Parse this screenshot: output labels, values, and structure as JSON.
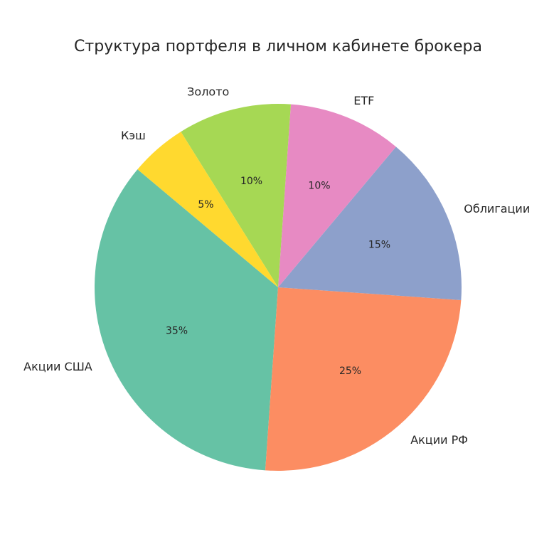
{
  "chart_data": {
    "type": "pie",
    "title": "Структура портфеля в личном кабинете брокера",
    "categories": [
      "Акции США",
      "Акции РФ",
      "Облигации",
      "ETF",
      "Золото",
      "Кэш"
    ],
    "values": [
      35,
      25,
      15,
      10,
      10,
      5
    ],
    "value_labels": [
      "35%",
      "25%",
      "15%",
      "10%",
      "10%",
      "5%"
    ],
    "colors": [
      "#66c2a5",
      "#fc8d62",
      "#8da0cb",
      "#e78ac3",
      "#a6d854",
      "#ffd92f"
    ],
    "start_angle_deg": 140,
    "direction": "counterclockwise",
    "legend": "none"
  }
}
